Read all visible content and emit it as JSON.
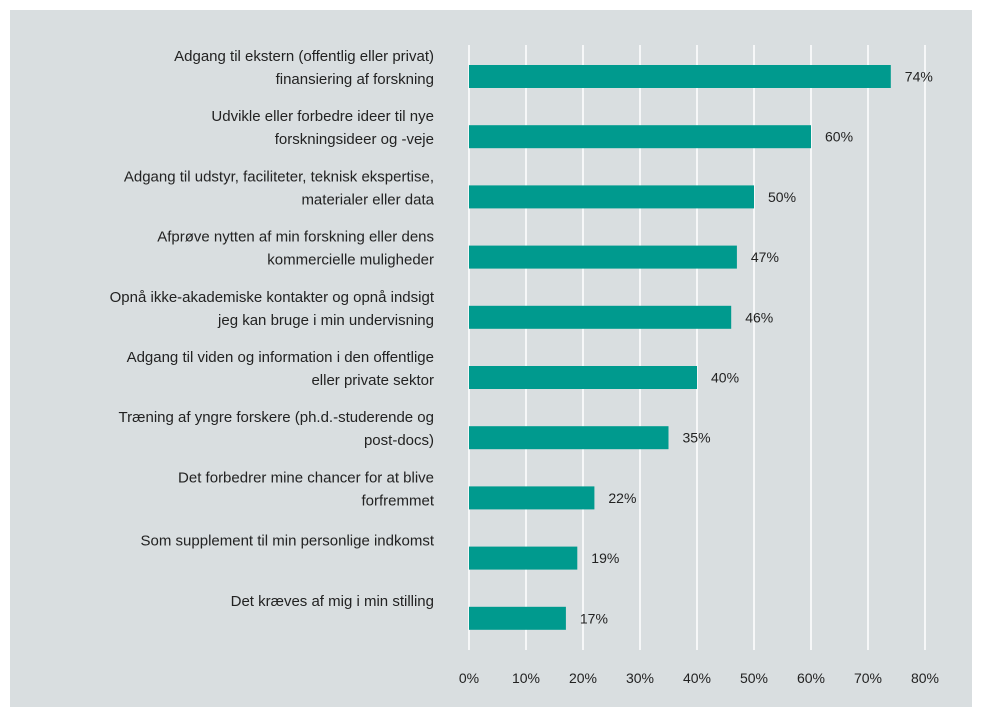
{
  "chart_data": {
    "type": "bar",
    "orientation": "horizontal",
    "title": "",
    "xlabel": "",
    "ylabel": "",
    "xlim": [
      0,
      80
    ],
    "grid": true,
    "legend": "none",
    "value_suffix": "%",
    "bar_color": "#009a8e",
    "background_color": "#d9dee0",
    "gridline_color": "#ffffff",
    "categories": [
      [
        "Adgang til ekstern (offentlig eller privat)",
        "finansiering af forskning"
      ],
      [
        "Udvikle eller forbedre ideer til nye",
        "forskningsideer og -veje"
      ],
      [
        "Adgang til udstyr, faciliteter, teknisk ekspertise,",
        "materialer eller data"
      ],
      [
        "Afprøve nytten af min forskning eller dens",
        "kommercielle muligheder"
      ],
      [
        "Opnå ikke-akademiske kontakter og opnå indsigt",
        "jeg kan bruge i min undervisning"
      ],
      [
        "Adgang til viden og information i den offentlige",
        "eller private sektor"
      ],
      [
        "Træning af yngre forskere (ph.d.-studerende og",
        "post-docs)"
      ],
      [
        "Det forbedrer mine chancer for at blive",
        "forfremmet"
      ],
      [
        "Som supplement til min personlige indkomst"
      ],
      [
        "Det kræves af mig i min stilling"
      ]
    ],
    "values": [
      74,
      60,
      50,
      47,
      46,
      40,
      35,
      22,
      19,
      17
    ],
    "value_labels": [
      "74%",
      "60%",
      "50%",
      "47%",
      "46%",
      "40%",
      "35%",
      "22%",
      "19%",
      "17%"
    ],
    "x_ticks": [
      "0%",
      "10%",
      "20%",
      "30%",
      "40%",
      "50%",
      "60%",
      "70%",
      "80%"
    ]
  }
}
